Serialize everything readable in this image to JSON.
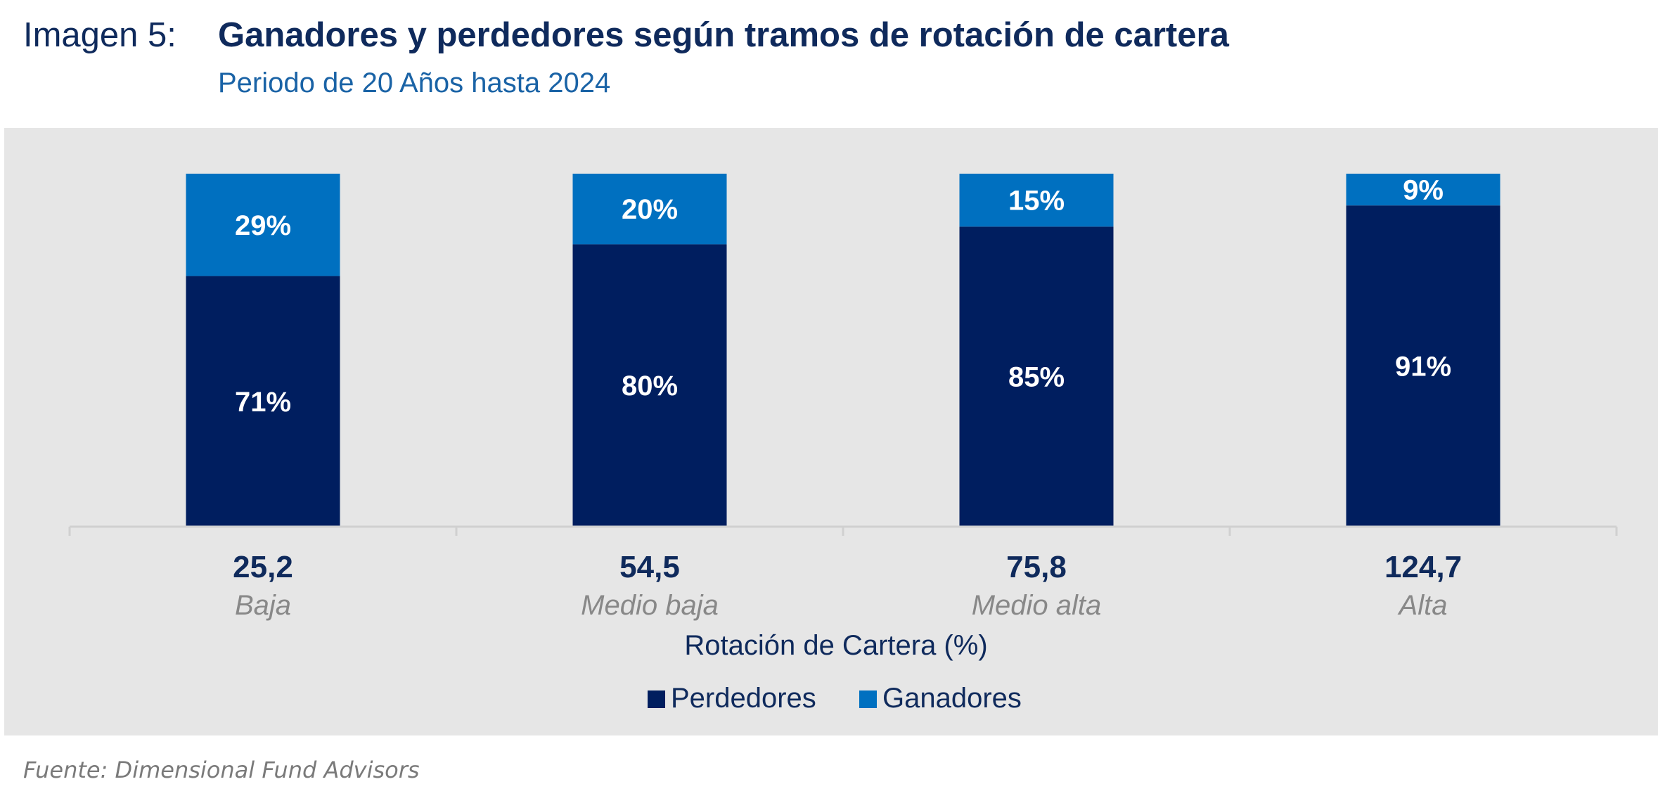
{
  "header": {
    "figure_label": "Imagen 5:",
    "title": "Ganadores  y perdedores según tramos de rotación de cartera",
    "subtitle": "Periodo de 20 Años hasta 2024"
  },
  "chart_data": {
    "type": "bar",
    "stacked": true,
    "categories": [
      "Baja",
      "Medio baja",
      "Medio alta",
      "Alta"
    ],
    "category_values": [
      "25,2",
      "54,5",
      "75,8",
      "124,7"
    ],
    "xlabel": "Rotación de Cartera (%)",
    "ylim": [
      0,
      100
    ],
    "grid": false,
    "legend_position": "bottom",
    "series": [
      {
        "name": "Perdedores",
        "values": [
          71,
          80,
          85,
          91
        ],
        "labels": [
          "71%",
          "80%",
          "85%",
          "91%"
        ],
        "color": "#001e5f"
      },
      {
        "name": "Ganadores",
        "values": [
          29,
          20,
          15,
          9
        ],
        "labels": [
          "29%",
          "20%",
          "15%",
          "9%"
        ],
        "color": "#0070c0"
      }
    ]
  },
  "footer": {
    "source": "Fuente: Dimensional Fund Advisors"
  },
  "colors": {
    "title": "#0f2a5c",
    "subtitle": "#1a63a6",
    "panel_background": "#e6e6e6",
    "category_name": "#888888"
  }
}
